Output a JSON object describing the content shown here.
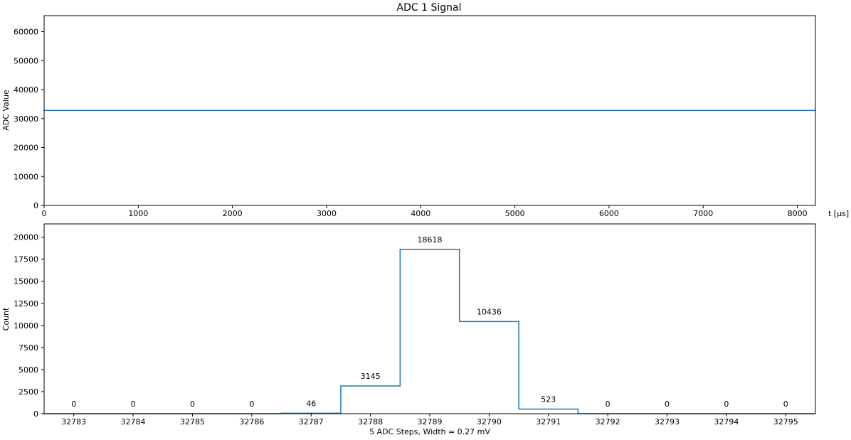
{
  "chart_data": [
    {
      "type": "line",
      "title": "ADC 1 Signal",
      "xlabel": "t [$\\mu$s]",
      "xlabel_display": "t [μs]",
      "ylabel": "ADC Value",
      "xlim": [
        0,
        8192
      ],
      "ylim": [
        0,
        65535
      ],
      "xticks": [
        0,
        1000,
        2000,
        3000,
        4000,
        5000,
        6000,
        7000,
        8000
      ],
      "yticks": [
        0,
        10000,
        20000,
        30000,
        40000,
        50000,
        60000
      ],
      "grid": false,
      "series": [
        {
          "color": "#1f77b4",
          "x": [
            0,
            8192
          ],
          "y": [
            32789,
            32789
          ]
        }
      ]
    },
    {
      "type": "histogram",
      "title": "",
      "xlabel": "5 ADC Steps, Width = 0.27 mV",
      "ylabel": "Count",
      "xlim": [
        32782.5,
        32795.5
      ],
      "ylim": [
        0,
        21500
      ],
      "xticks": [
        32783,
        32784,
        32785,
        32786,
        32787,
        32788,
        32789,
        32790,
        32791,
        32792,
        32793,
        32794,
        32795
      ],
      "yticks": [
        0,
        2500,
        5000,
        7500,
        10000,
        12500,
        15000,
        17500,
        20000
      ],
      "grid": false,
      "categories": [
        32783,
        32784,
        32785,
        32786,
        32787,
        32788,
        32789,
        32790,
        32791,
        32792,
        32793,
        32794,
        32795
      ],
      "values": [
        0,
        0,
        0,
        0,
        46,
        3145,
        18618,
        10436,
        523,
        0,
        0,
        0,
        0
      ],
      "color": "#1f77b4"
    }
  ]
}
